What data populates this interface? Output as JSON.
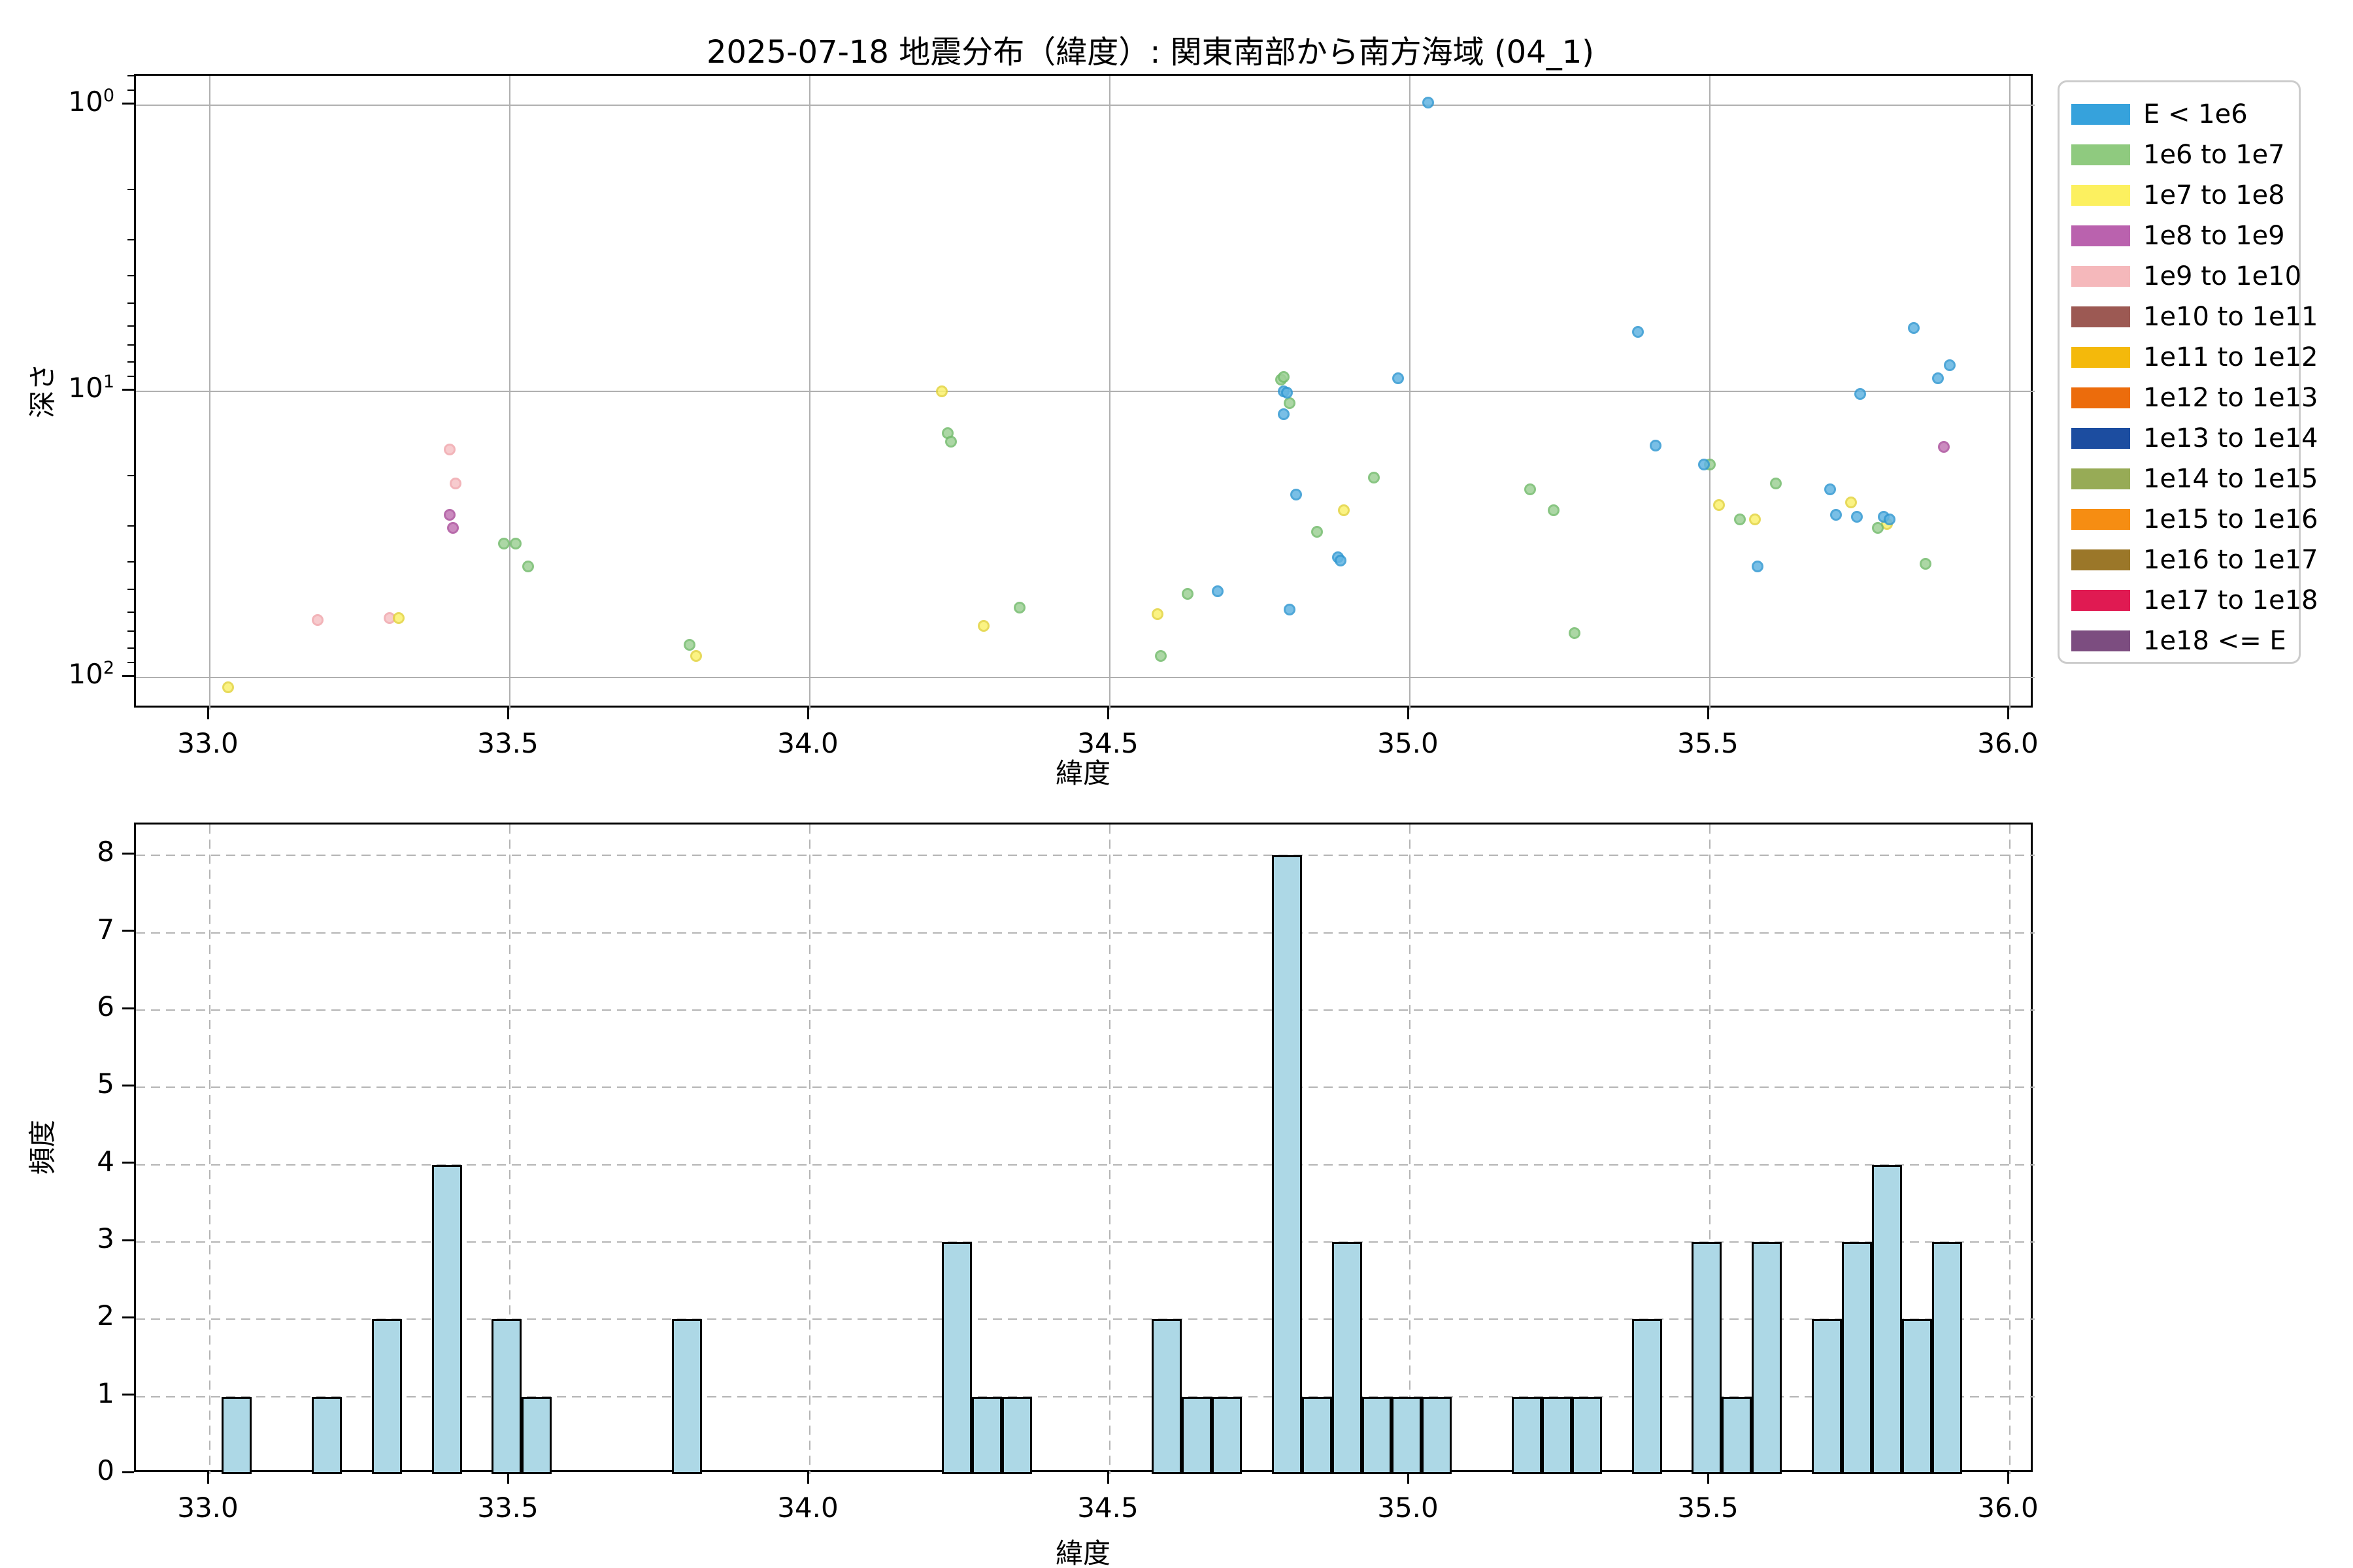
{
  "title": "2025-07-18 地震分布（緯度）: 関東南部から南方海域 (04_1)",
  "legend": {
    "entries": [
      {
        "label": "E < 1e6",
        "color": "#36A2DC"
      },
      {
        "label": "1e6 to 1e7",
        "color": "#8FCA7F"
      },
      {
        "label": "1e7 to 1e8",
        "color": "#FCF05F"
      },
      {
        "label": "1e8 to 1e9",
        "color": "#BA62AE"
      },
      {
        "label": "1e9 to 1e10",
        "color": "#F5B8BB"
      },
      {
        "label": "1e10 to 1e11",
        "color": "#9C5953"
      },
      {
        "label": "1e11 to 1e12",
        "color": "#F4B90B"
      },
      {
        "label": "1e12 to 1e13",
        "color": "#EC6C0C"
      },
      {
        "label": "1e13 to 1e14",
        "color": "#1C4DA0"
      },
      {
        "label": "1e14 to 1e15",
        "color": "#97AB56"
      },
      {
        "label": "1e15 to 1e16",
        "color": "#F68D12"
      },
      {
        "label": "1e16 to 1e17",
        "color": "#9B7729"
      },
      {
        "label": "1e17 to 1e18",
        "color": "#E01A52"
      },
      {
        "label": "1e18 <= E",
        "color": "#7C4D80"
      }
    ]
  },
  "chart_data": [
    {
      "type": "scatter",
      "title": "2025-07-18 地震分布（緯度）: 関東南部から南方海域 (04_1)",
      "xlabel": "緯度",
      "ylabel": "深さ",
      "x_range": [
        32.877,
        36.04
      ],
      "y_scale": "log",
      "y_inverted": true,
      "y_range_depth": [
        0.79,
        130
      ],
      "grid": "solid",
      "legend_position": "outside upper right",
      "xticks": [
        {
          "value": 33.0,
          "label": "33.0"
        },
        {
          "value": 33.5,
          "label": "33.5"
        },
        {
          "value": 34.0,
          "label": "34.0"
        },
        {
          "value": 34.5,
          "label": "34.5"
        },
        {
          "value": 35.0,
          "label": "35.0"
        },
        {
          "value": 35.5,
          "label": "35.5"
        },
        {
          "value": 36.0,
          "label": "36.0"
        }
      ],
      "yticks": [
        {
          "value": 1,
          "label": "10",
          "exp": "0"
        },
        {
          "value": 10,
          "label": "10",
          "exp": "1"
        },
        {
          "value": 100,
          "label": "10",
          "exp": "2"
        }
      ],
      "y_minor_ticks": [
        0.8,
        0.9,
        2,
        3,
        4,
        5,
        6,
        7,
        8,
        9,
        20,
        30,
        40,
        50,
        60,
        70,
        80,
        90
      ],
      "series": [
        {
          "name": "E < 1e6",
          "edge": "#3198D2",
          "fill": "#62B5E2",
          "points": [
            [
              34.68,
              50
            ],
            [
              34.79,
              10.0
            ],
            [
              34.795,
              10.1
            ],
            [
              34.79,
              12.0
            ],
            [
              34.81,
              23
            ],
            [
              34.8,
              58
            ],
            [
              34.88,
              38
            ],
            [
              34.885,
              39
            ],
            [
              34.98,
              9.0
            ],
            [
              35.03,
              0.98
            ],
            [
              35.38,
              6.2
            ],
            [
              35.41,
              15.5
            ],
            [
              35.49,
              18
            ],
            [
              35.58,
              41
            ],
            [
              35.7,
              22
            ],
            [
              35.71,
              27
            ],
            [
              35.745,
              27.5
            ],
            [
              35.75,
              10.2
            ],
            [
              35.79,
              27.5
            ],
            [
              35.8,
              28
            ],
            [
              35.84,
              6.0
            ],
            [
              35.88,
              9.0
            ],
            [
              35.9,
              8.1
            ]
          ]
        },
        {
          "name": "1e6 to 1e7",
          "edge": "#74BC6D",
          "fill": "#9ED196",
          "points": [
            [
              33.49,
              34
            ],
            [
              33.51,
              34
            ],
            [
              33.53,
              41
            ],
            [
              33.8,
              77
            ],
            [
              34.23,
              14
            ],
            [
              34.235,
              15
            ],
            [
              34.35,
              57
            ],
            [
              34.585,
              84
            ],
            [
              34.63,
              51
            ],
            [
              34.785,
              9.1
            ],
            [
              34.79,
              8.9
            ],
            [
              34.8,
              11.0
            ],
            [
              34.845,
              31
            ],
            [
              34.94,
              20
            ],
            [
              35.2,
              22
            ],
            [
              35.24,
              26
            ],
            [
              35.275,
              70
            ],
            [
              35.5,
              18
            ],
            [
              35.55,
              28
            ],
            [
              35.61,
              21
            ],
            [
              35.78,
              30
            ],
            [
              35.86,
              40
            ]
          ]
        },
        {
          "name": "1e7 to 1e8",
          "edge": "#E3D43F",
          "fill": "#FBF26E",
          "points": [
            [
              33.03,
              108
            ],
            [
              33.315,
              62
            ],
            [
              33.81,
              84
            ],
            [
              34.22,
              10
            ],
            [
              34.29,
              66
            ],
            [
              34.58,
              60
            ],
            [
              34.89,
              26
            ],
            [
              35.515,
              25
            ],
            [
              35.575,
              28
            ],
            [
              35.735,
              24.5
            ],
            [
              35.795,
              29
            ]
          ]
        },
        {
          "name": "1e8 to 1e9",
          "edge": "#AC529D",
          "fill": "#C277B4",
          "points": [
            [
              33.4,
              27
            ],
            [
              33.405,
              30
            ],
            [
              35.89,
              15.6
            ]
          ]
        },
        {
          "name": "1e9 to 1e10",
          "edge": "#F0A8AD",
          "fill": "#F6C3C6",
          "points": [
            [
              33.18,
              63
            ],
            [
              33.3,
              62
            ],
            [
              33.4,
              16
            ],
            [
              33.41,
              21
            ]
          ]
        },
        {
          "name": "1e10 to 1e11",
          "edge": "#8A4E48",
          "fill": "#9C5953",
          "points": []
        },
        {
          "name": "1e11 to 1e12",
          "edge": "#D9A509",
          "fill": "#F4B90B",
          "points": []
        },
        {
          "name": "1e12 to 1e13",
          "edge": "#CF5E0A",
          "fill": "#EC6C0C",
          "points": []
        },
        {
          "name": "1e13 to 1e14",
          "edge": "#173F84",
          "fill": "#1C4DA0",
          "points": []
        },
        {
          "name": "1e14 to 1e15",
          "edge": "#83944A",
          "fill": "#97AB56",
          "points": []
        },
        {
          "name": "1e15 to 1e16",
          "edge": "#D97B0F",
          "fill": "#F68D12",
          "points": []
        },
        {
          "name": "1e16 to 1e17",
          "edge": "#856622",
          "fill": "#9B7729",
          "points": []
        },
        {
          "name": "1e17 to 1e18",
          "edge": "#C01646",
          "fill": "#E01A52",
          "points": []
        },
        {
          "name": "1e18 <= E",
          "edge": "#69416D",
          "fill": "#7C4D80",
          "points": []
        }
      ]
    },
    {
      "type": "histogram",
      "xlabel": "緯度",
      "ylabel": "頻度",
      "x_range": [
        32.877,
        36.04
      ],
      "y_range": [
        0,
        8.4
      ],
      "grid": "dashed",
      "bar_color": "#ADD8E6",
      "bar_edge": "#000000",
      "bin_start": 33.02,
      "bin_width": 0.05,
      "counts": [
        1,
        0,
        0,
        1,
        0,
        2,
        0,
        4,
        0,
        2,
        1,
        0,
        0,
        0,
        0,
        2,
        0,
        0,
        0,
        0,
        0,
        0,
        0,
        0,
        3,
        1,
        1,
        0,
        0,
        0,
        0,
        2,
        1,
        1,
        0,
        8,
        1,
        3,
        1,
        1,
        1,
        0,
        0,
        1,
        1,
        1,
        0,
        2,
        0,
        3,
        1,
        3,
        0,
        2,
        3,
        4,
        2,
        3
      ],
      "xticks": [
        {
          "value": 33.0,
          "label": "33.0"
        },
        {
          "value": 33.5,
          "label": "33.5"
        },
        {
          "value": 34.0,
          "label": "34.0"
        },
        {
          "value": 34.5,
          "label": "34.5"
        },
        {
          "value": 35.0,
          "label": "35.0"
        },
        {
          "value": 35.5,
          "label": "35.5"
        },
        {
          "value": 36.0,
          "label": "36.0"
        }
      ],
      "yticks": [
        {
          "value": 0,
          "label": "0"
        },
        {
          "value": 1,
          "label": "1"
        },
        {
          "value": 2,
          "label": "2"
        },
        {
          "value": 3,
          "label": "3"
        },
        {
          "value": 4,
          "label": "4"
        },
        {
          "value": 5,
          "label": "5"
        },
        {
          "value": 6,
          "label": "6"
        },
        {
          "value": 7,
          "label": "7"
        },
        {
          "value": 8,
          "label": "8"
        }
      ]
    }
  ]
}
